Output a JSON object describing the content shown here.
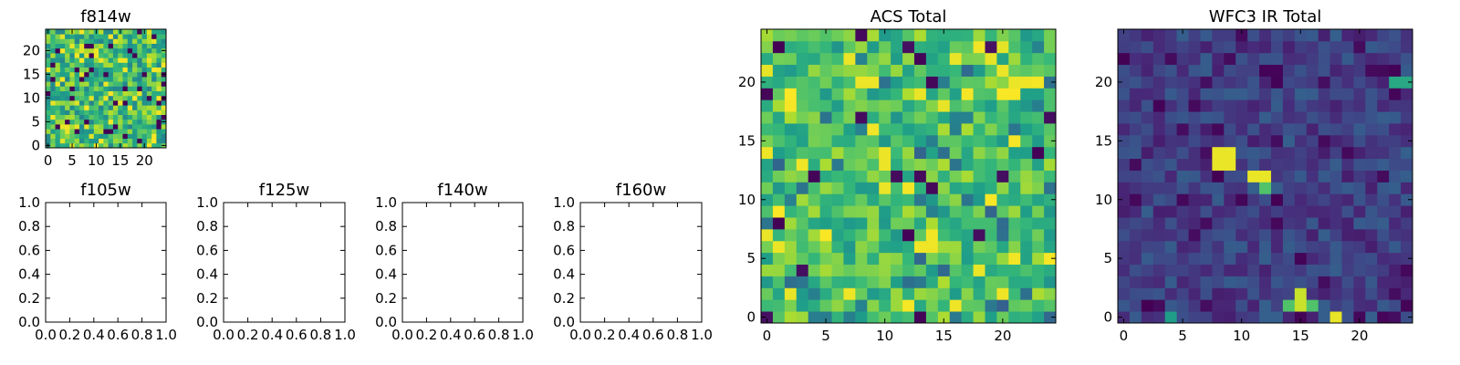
{
  "figure": {
    "background": "#ffffff",
    "colormap": "viridis"
  },
  "chart_data": [
    {
      "id": "f814w",
      "type": "heatmap",
      "title": "f814w",
      "grid_size": [
        25,
        25
      ],
      "xlim": [
        -0.5,
        24.5
      ],
      "ylim": [
        -0.5,
        24.5
      ],
      "xticks": [
        0,
        5,
        10,
        15,
        20
      ],
      "yticks": [
        0,
        5,
        10,
        15,
        20
      ],
      "value_range": [
        0,
        1
      ],
      "seed": 814,
      "style": "noise"
    },
    {
      "id": "f105w",
      "type": "empty",
      "title": "f105w",
      "xlim": [
        0,
        1
      ],
      "ylim": [
        0,
        1
      ],
      "xticks": [
        "0.0",
        "0.2",
        "0.4",
        "0.6",
        "0.8",
        "1.0"
      ],
      "yticks": [
        "0.0",
        "0.2",
        "0.4",
        "0.6",
        "0.8",
        "1.0"
      ]
    },
    {
      "id": "f125w",
      "type": "empty",
      "title": "f125w",
      "xlim": [
        0,
        1
      ],
      "ylim": [
        0,
        1
      ],
      "xticks": [
        "0.0",
        "0.2",
        "0.4",
        "0.6",
        "0.8",
        "1.0"
      ],
      "yticks": [
        "0.0",
        "0.2",
        "0.4",
        "0.6",
        "0.8",
        "1.0"
      ]
    },
    {
      "id": "f140w",
      "type": "empty",
      "title": "f140w",
      "xlim": [
        0,
        1
      ],
      "ylim": [
        0,
        1
      ],
      "xticks": [
        "0.0",
        "0.2",
        "0.4",
        "0.6",
        "0.8",
        "1.0"
      ],
      "yticks": [
        "0.0",
        "0.2",
        "0.4",
        "0.6",
        "0.8",
        "1.0"
      ]
    },
    {
      "id": "f160w",
      "type": "empty",
      "title": "f160w",
      "xlim": [
        0,
        1
      ],
      "ylim": [
        0,
        1
      ],
      "xticks": [
        "0.0",
        "0.2",
        "0.4",
        "0.6",
        "0.8",
        "1.0"
      ],
      "yticks": [
        "0.0",
        "0.2",
        "0.4",
        "0.6",
        "0.8",
        "1.0"
      ]
    },
    {
      "id": "acs-total",
      "type": "heatmap",
      "title": "ACS Total",
      "grid_size": [
        25,
        25
      ],
      "xlim": [
        -0.5,
        24.5
      ],
      "ylim": [
        -0.5,
        24.5
      ],
      "xticks": [
        0,
        5,
        10,
        15,
        20
      ],
      "yticks": [
        0,
        5,
        10,
        15,
        20
      ],
      "value_range": [
        0,
        1
      ],
      "seed": 2024,
      "style": "acs"
    },
    {
      "id": "wfc3-ir-total",
      "type": "heatmap",
      "title": "WFC3 IR Total",
      "grid_size": [
        25,
        25
      ],
      "xlim": [
        -0.5,
        24.5
      ],
      "ylim": [
        -0.5,
        24.5
      ],
      "xticks": [
        0,
        5,
        10,
        15,
        20
      ],
      "yticks": [
        0,
        5,
        10,
        15,
        20
      ],
      "value_range": [
        0,
        1
      ],
      "seed": 3141,
      "style": "ir",
      "bright_sources": [
        {
          "cols": [
            8,
            9
          ],
          "rows": [
            13,
            14
          ],
          "value": 0.97
        },
        {
          "cols": [
            11,
            12
          ],
          "rows": [
            12,
            12
          ],
          "value": 0.97
        },
        {
          "cols": [
            12,
            12
          ],
          "rows": [
            11,
            11
          ],
          "value": 0.72
        },
        {
          "cols": [
            15,
            15
          ],
          "rows": [
            1,
            2
          ],
          "value": 0.92
        },
        {
          "cols": [
            14,
            14
          ],
          "rows": [
            1,
            1
          ],
          "value": 0.72
        },
        {
          "cols": [
            16,
            16
          ],
          "rows": [
            1,
            1
          ],
          "value": 0.72
        },
        {
          "cols": [
            18,
            18
          ],
          "rows": [
            0,
            0
          ],
          "value": 0.97
        },
        {
          "cols": [
            4,
            4
          ],
          "rows": [
            0,
            0
          ],
          "value": 0.55
        },
        {
          "cols": [
            23,
            24
          ],
          "rows": [
            20,
            20
          ],
          "value": 0.6
        }
      ]
    }
  ]
}
